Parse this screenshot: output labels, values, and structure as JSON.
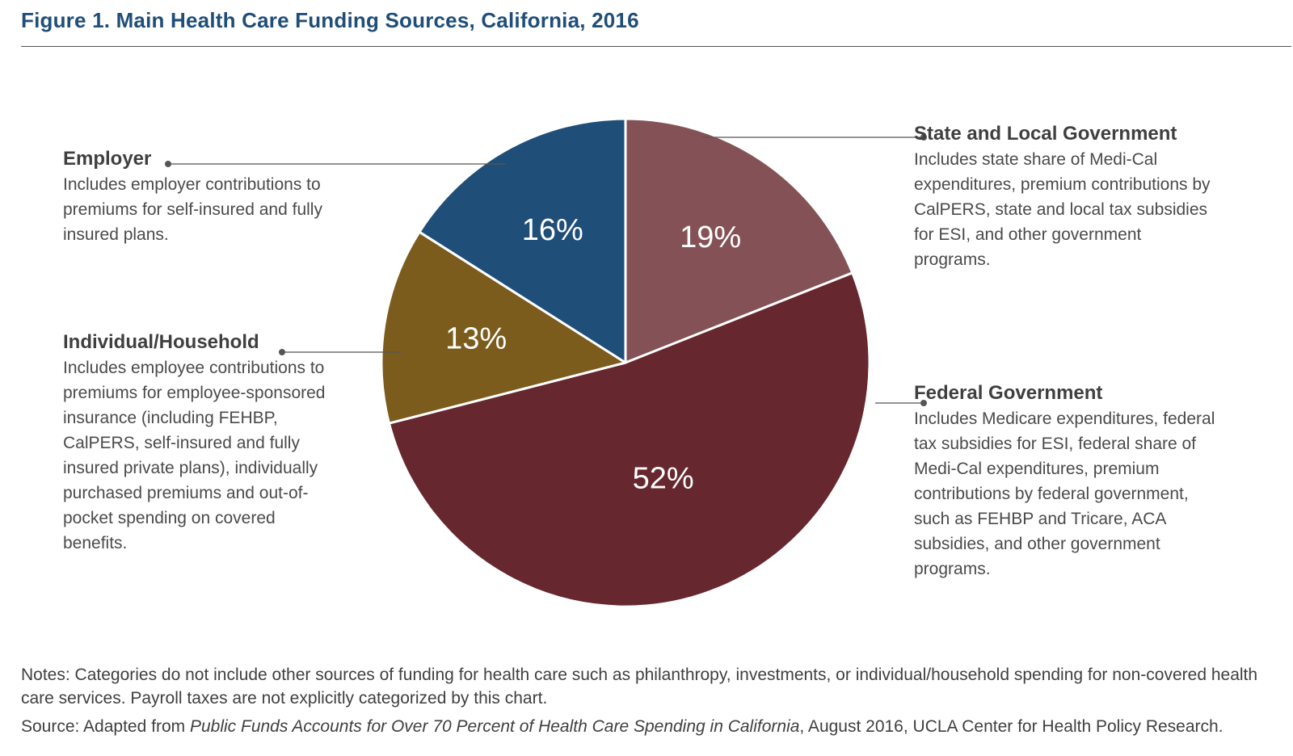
{
  "header": {
    "title": "Figure 1. Main Health Care Funding Sources, California, 2016"
  },
  "chart_data": {
    "type": "pie",
    "title": "Figure 1. Main Health Care Funding Sources, California, 2016",
    "unit": "percent",
    "slices": [
      {
        "key": "state",
        "label": "State and Local Government",
        "value": 19,
        "display": "19%",
        "color": "#845256",
        "description": "Includes state share of Medi-Cal expenditures, premium contributions by CalPERS, state and local tax subsidies for ESI, and other government programs."
      },
      {
        "key": "federal",
        "label": "Federal Government",
        "value": 52,
        "display": "52%",
        "color": "#66272e",
        "description": "Includes Medicare expenditures, federal tax subsidies for ESI, federal share of Medi-Cal expenditures, premium contributions by federal government, such as FEHBP and Tricare, ACA subsidies, and other government programs."
      },
      {
        "key": "individual",
        "label": "Individual/Household",
        "value": 13,
        "display": "13%",
        "color": "#7c5c1c",
        "description": "Includes employee contributions to premiums for employee-sponsored insurance (including FEHBP, CalPERS, self-insured and fully insured private plans), individually purchased premiums and out-of-pocket spending on covered benefits."
      },
      {
        "key": "employer",
        "label": "Employer",
        "value": 16,
        "display": "16%",
        "color": "#1f4e79",
        "description": "Includes employer contributions to premiums for self-insured and fully insured plans."
      }
    ]
  },
  "footer": {
    "notes": "Notes: Categories do not include other sources of funding for health care such as philanthropy, investments, or individual/household spending for non-covered health care services. Payroll taxes are not explicitly categorized by this chart.",
    "source_prefix": "Source: Adapted from ",
    "source_title": "Public Funds Accounts for Over 70 Percent of Health Care Spending in California",
    "source_suffix": ", August 2016, UCLA Center for Health Policy Research."
  }
}
